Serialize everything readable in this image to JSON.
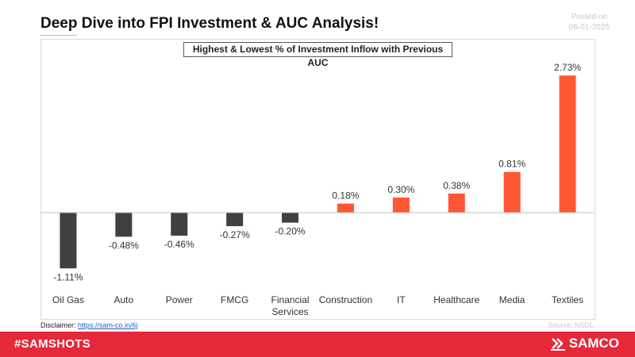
{
  "header": {
    "title": "Deep Dive into FPI Investment & AUC Analysis!",
    "posted_label": "Posted on",
    "posted_date": "06-01-2025"
  },
  "colors": {
    "negative": "#404040",
    "positive": "#ff5733",
    "brand_red": "#e5283a"
  },
  "chart_data": {
    "type": "bar",
    "title": "Highest & Lowest % of Investment Inflow with Previous AUC",
    "categories": [
      "Oil Gas",
      "Auto",
      "Power",
      "FMCG",
      "Financial Services",
      "Construction",
      "IT",
      "Healthcare",
      "Media",
      "Textiles"
    ],
    "values": [
      -1.11,
      -0.48,
      -0.46,
      -0.27,
      -0.2,
      0.18,
      0.3,
      0.38,
      0.81,
      2.73
    ],
    "data_labels": [
      "-1.11%",
      "-0.48%",
      "-0.46%",
      "-0.27%",
      "-0.20%",
      "0.18%",
      "0.30%",
      "0.38%",
      "0.81%",
      "2.73%"
    ],
    "ylim": [
      -1.11,
      2.73
    ],
    "grid": false,
    "legend": "none"
  },
  "footer": {
    "disclaimer_label": "Disclaimer:",
    "disclaimer_link": "https://sam-co.in/6j",
    "source": "Source: NSDL",
    "hashtag": "#SAMSHOTS",
    "brand": "SAMCO"
  }
}
